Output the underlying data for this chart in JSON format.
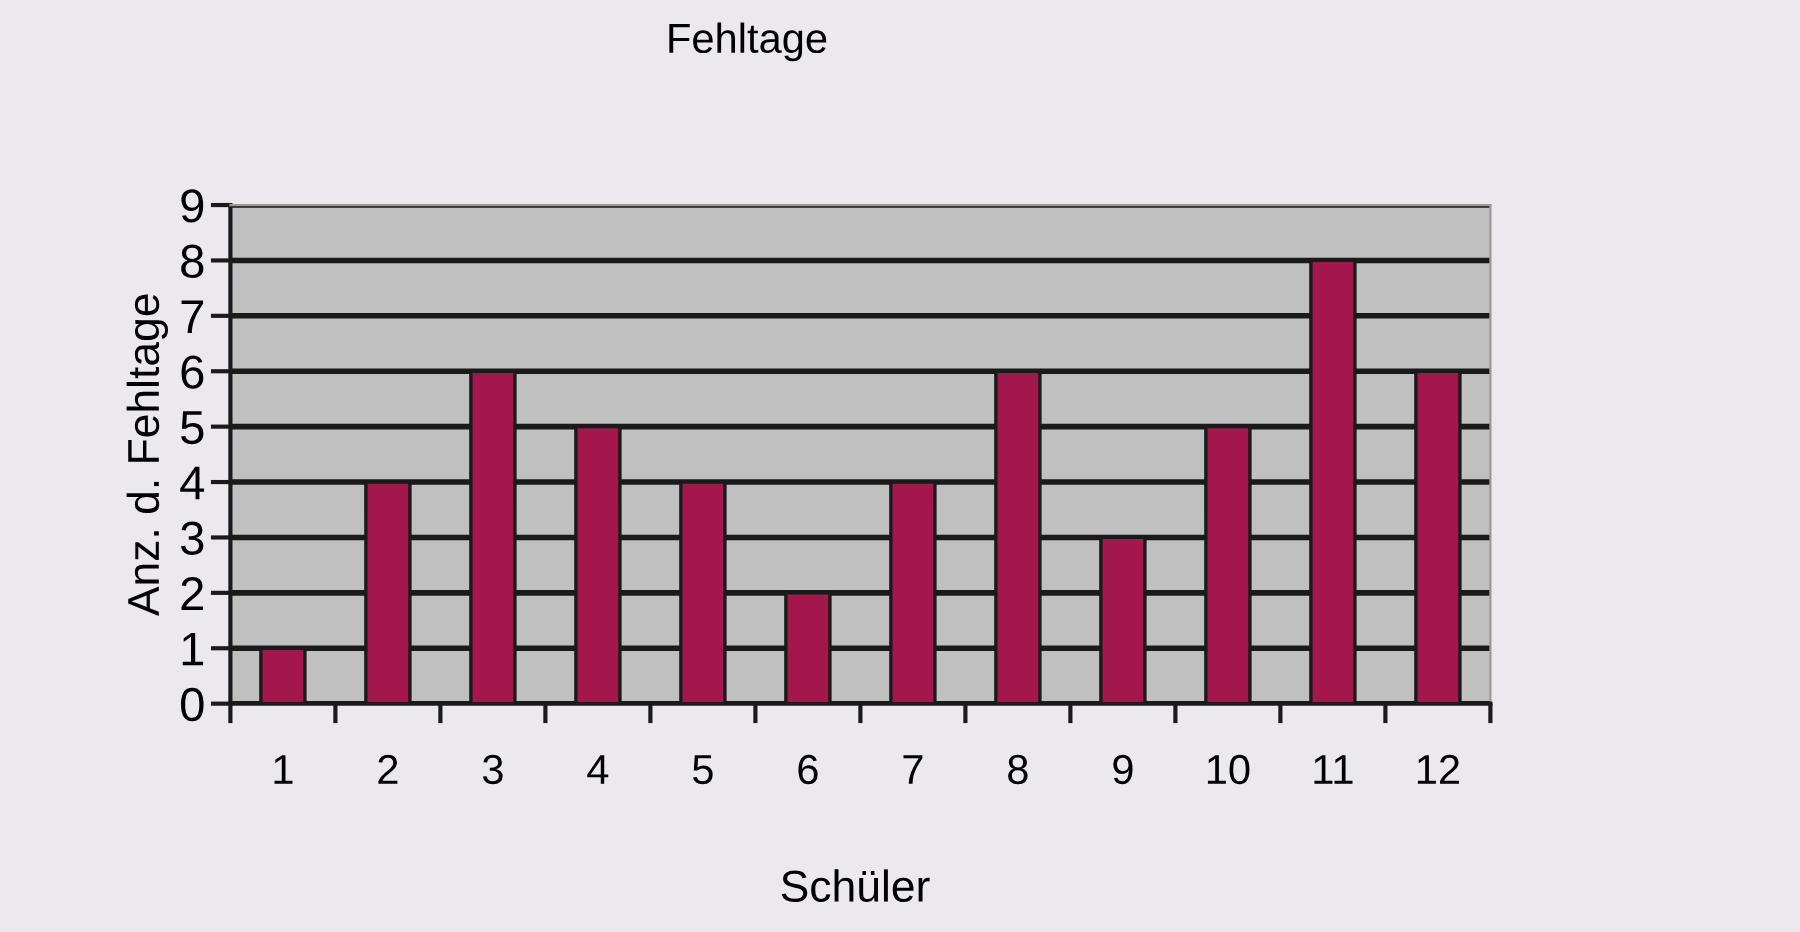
{
  "chart_data": {
    "type": "bar",
    "title": "Fehltage",
    "xlabel": "Schüler",
    "ylabel": "Anz. d. Fehltage",
    "categories": [
      "1",
      "2",
      "3",
      "4",
      "5",
      "6",
      "7",
      "8",
      "9",
      "10",
      "11",
      "12"
    ],
    "values": [
      1,
      4,
      6,
      5,
      4,
      2,
      4,
      6,
      3,
      5,
      8,
      6
    ],
    "color": "#a3174d",
    "ylim": [
      0,
      9
    ],
    "yticks": [
      0,
      1,
      2,
      3,
      4,
      5,
      6,
      7,
      8,
      9
    ],
    "grid": "y",
    "legend": false
  }
}
